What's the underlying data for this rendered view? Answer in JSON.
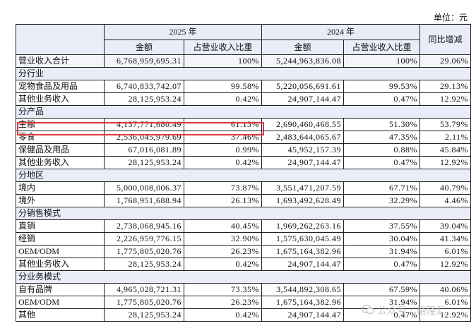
{
  "unit_label": "单位：元",
  "header": {
    "first_col": "",
    "year_2025": "2025 年",
    "year_2024": "2024 年",
    "yoy": "同比增减",
    "amount": "金额",
    "ratio": "占营业收入比重"
  },
  "rows": [
    {
      "type": "total",
      "label": "营业收入合计",
      "amt25": "6,768,959,695.31",
      "pct25": "100%",
      "amt24": "5,244,963,836.08",
      "pct24": "100%",
      "yoy": "29.06%"
    },
    {
      "type": "section",
      "label": "分行业"
    },
    {
      "type": "row",
      "label": "宠物食品及用品",
      "amt25": "6,740,833,742.07",
      "pct25": "99.58%",
      "amt24": "5,220,056,691.61",
      "pct24": "99.53%",
      "yoy": "29.13%"
    },
    {
      "type": "row",
      "label": "其他业务收入",
      "amt25": "28,125,953.24",
      "pct25": "0.42%",
      "amt24": "24,907,144.47",
      "pct24": "0.47%",
      "yoy": "12.92%"
    },
    {
      "type": "section",
      "label": "分产品"
    },
    {
      "type": "row",
      "label": "主粮",
      "amt25": "4,137,771,680.49",
      "pct25": "61.13%",
      "amt24": "2,690,460,468.55",
      "pct24": "51.30%",
      "yoy": "53.79%"
    },
    {
      "type": "row",
      "label": "零食",
      "amt25": "2,536,045,979.69",
      "pct25": "37.46%",
      "amt24": "2,483,644,065.67",
      "pct24": "47.35%",
      "yoy": "2.11%"
    },
    {
      "type": "row",
      "label": "保健品及用品",
      "amt25": "67,016,081.89",
      "pct25": "0.99%",
      "amt24": "45,952,157.39",
      "pct24": "0.88%",
      "yoy": "45.84%"
    },
    {
      "type": "row",
      "label": "其他业务收入",
      "amt25": "28,125,953.24",
      "pct25": "0.42%",
      "amt24": "24,907,144.47",
      "pct24": "0.47%",
      "yoy": "12.92%"
    },
    {
      "type": "section",
      "label": "分地区"
    },
    {
      "type": "row",
      "label": "境内",
      "amt25": "5,000,008,006.37",
      "pct25": "73.87%",
      "amt24": "3,551,471,207.59",
      "pct24": "67.71%",
      "yoy": "40.79%"
    },
    {
      "type": "row",
      "label": "境外",
      "amt25": "1,768,951,688.94",
      "pct25": "26.13%",
      "amt24": "1,693,492,628.49",
      "pct24": "32.29%",
      "yoy": "4.46%"
    },
    {
      "type": "section",
      "label": "分销售模式"
    },
    {
      "type": "row",
      "label": "直销",
      "amt25": "2,738,068,945.16",
      "pct25": "40.45%",
      "amt24": "1,969,262,263.16",
      "pct24": "37.55%",
      "yoy": "39.04%"
    },
    {
      "type": "row",
      "label": "经销",
      "amt25": "2,226,959,776.15",
      "pct25": "32.90%",
      "amt24": "1,575,630,045.49",
      "pct24": "30.04%",
      "yoy": "41.34%"
    },
    {
      "type": "row",
      "label": "OEM/ODM",
      "amt25": "1,775,805,020.76",
      "pct25": "26.23%",
      "amt24": "1,675,164,382.96",
      "pct24": "31.94%",
      "yoy": "6.01%"
    },
    {
      "type": "row",
      "label": "其他业务收入",
      "amt25": "28,125,953.24",
      "pct25": "0.42%",
      "amt24": "24,907,144.47",
      "pct24": "0.47%",
      "yoy": "12.92%"
    },
    {
      "type": "section",
      "label": "分业务模式"
    },
    {
      "type": "row",
      "label": "自有品牌",
      "amt25": "4,965,028,721.31",
      "pct25": "73.35%",
      "amt24": "3,544,892,308.65",
      "pct24": "67.59%",
      "yoy": "40.06%"
    },
    {
      "type": "row",
      "label": "OEM/ODM",
      "amt25": "1,775,805,020.76",
      "pct25": "26.23%",
      "amt24": "1,675,164,382.96",
      "pct24": "31.94%",
      "yoy": "6.01%"
    },
    {
      "type": "row",
      "label": "其他",
      "amt25": "28,125,953.24",
      "pct25": "0.42%",
      "amt24": "24,907,144.47",
      "pct24": "0.47%",
      "yoy": "12.92%"
    }
  ],
  "watermark": "公众号 · 格隆汇",
  "colors": {
    "header_bg": "#e8edf8",
    "highlight": "#e0373e",
    "border": "#222222"
  }
}
